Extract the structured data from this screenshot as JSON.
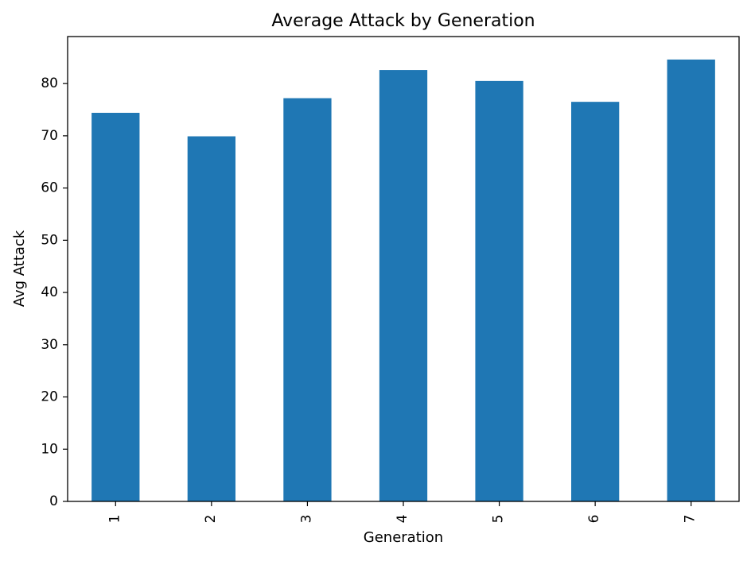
{
  "chart_data": {
    "type": "bar",
    "title": "Average Attack by Generation",
    "xlabel": "Generation",
    "ylabel": "Avg Attack",
    "categories": [
      "1",
      "2",
      "3",
      "4",
      "5",
      "6",
      "7"
    ],
    "values": [
      74.4,
      69.9,
      77.2,
      82.6,
      80.5,
      76.5,
      84.6
    ],
    "ylim": [
      0,
      89
    ],
    "yticks": [
      0,
      10,
      20,
      30,
      40,
      50,
      60,
      70,
      80
    ],
    "bar_color": "#1f77b4",
    "grid": false,
    "legend": "none"
  }
}
